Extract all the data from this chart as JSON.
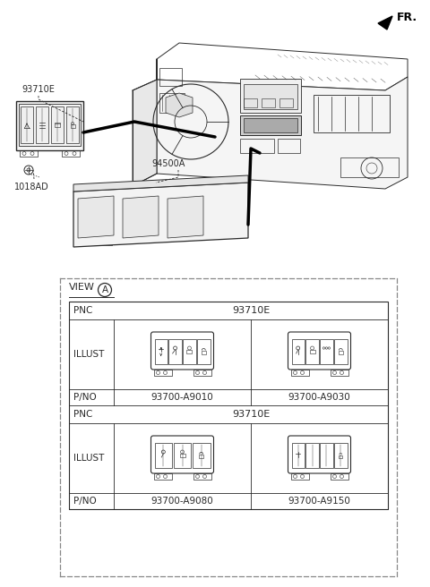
{
  "bg_color": "#ffffff",
  "fig_width": 4.8,
  "fig_height": 6.56,
  "lc": "#2a2a2a",
  "tc": "#2a2a2a",
  "table_pnc1": "93710E",
  "table_pnc2": "93710E",
  "table_left_pno1": "93700-A9010",
  "table_right_pno1": "93700-A9030",
  "table_left_pno2": "93700-A9080",
  "table_right_pno2": "93700-A9150",
  "fr_text": "FR.",
  "label_93710E": "93710E",
  "label_1018AD": "1018AD",
  "label_94500A": "94500A",
  "view_text": "VIEW",
  "view_circle": "A",
  "row_label_pnc": "PNC",
  "row_label_illust": "ILLUST",
  "row_label_pno": "P/NO"
}
